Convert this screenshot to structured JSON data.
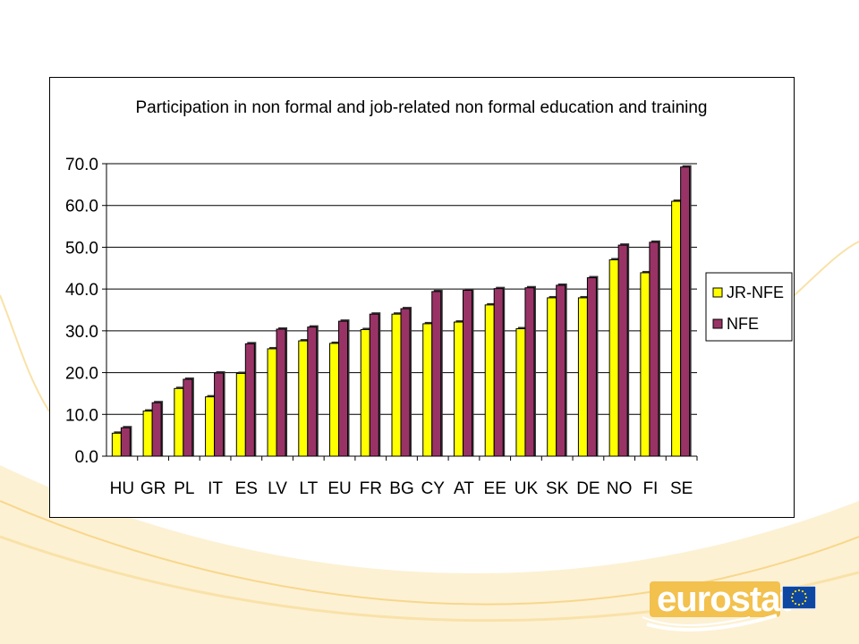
{
  "colors": {
    "jr_nfe": "#ffff00",
    "nfe": "#993366",
    "background_swoosh": "#f7d78c",
    "logo": "#f2c14e",
    "eu_flag_blue": "#0e47a1",
    "eu_flag_stars": "#ffdd00"
  },
  "logo": {
    "text": "eurostat",
    "flag_icon": "eu-flag-icon"
  },
  "chart_data": {
    "type": "bar",
    "title": "Participation in non formal and job-related non formal education and training",
    "xlabel": "",
    "ylabel": "",
    "ylim": [
      0,
      70
    ],
    "yticks": [
      "0.0",
      "10.0",
      "20.0",
      "30.0",
      "40.0",
      "50.0",
      "60.0",
      "70.0"
    ],
    "grid": true,
    "legend_position": "right",
    "categories": [
      "HU",
      "GR",
      "PL",
      "IT",
      "ES",
      "LV",
      "LT",
      "EU",
      "FR",
      "BG",
      "CY",
      "AT",
      "EE",
      "UK",
      "SK",
      "DE",
      "NO",
      "FI",
      "SE"
    ],
    "series": [
      {
        "name": "JR-NFE",
        "values": [
          5.5,
          10.8,
          16.2,
          14.2,
          19.8,
          25.7,
          27.6,
          27.0,
          30.3,
          34.0,
          31.7,
          32.1,
          36.2,
          30.5,
          37.9,
          37.9,
          47.0,
          43.9,
          61.0
        ]
      },
      {
        "name": "NFE",
        "values": [
          6.8,
          12.8,
          18.4,
          19.9,
          26.9,
          30.4,
          30.9,
          32.3,
          34.0,
          35.3,
          39.4,
          39.7,
          40.1,
          40.3,
          40.9,
          42.7,
          50.5,
          51.2,
          69.2
        ]
      }
    ]
  }
}
